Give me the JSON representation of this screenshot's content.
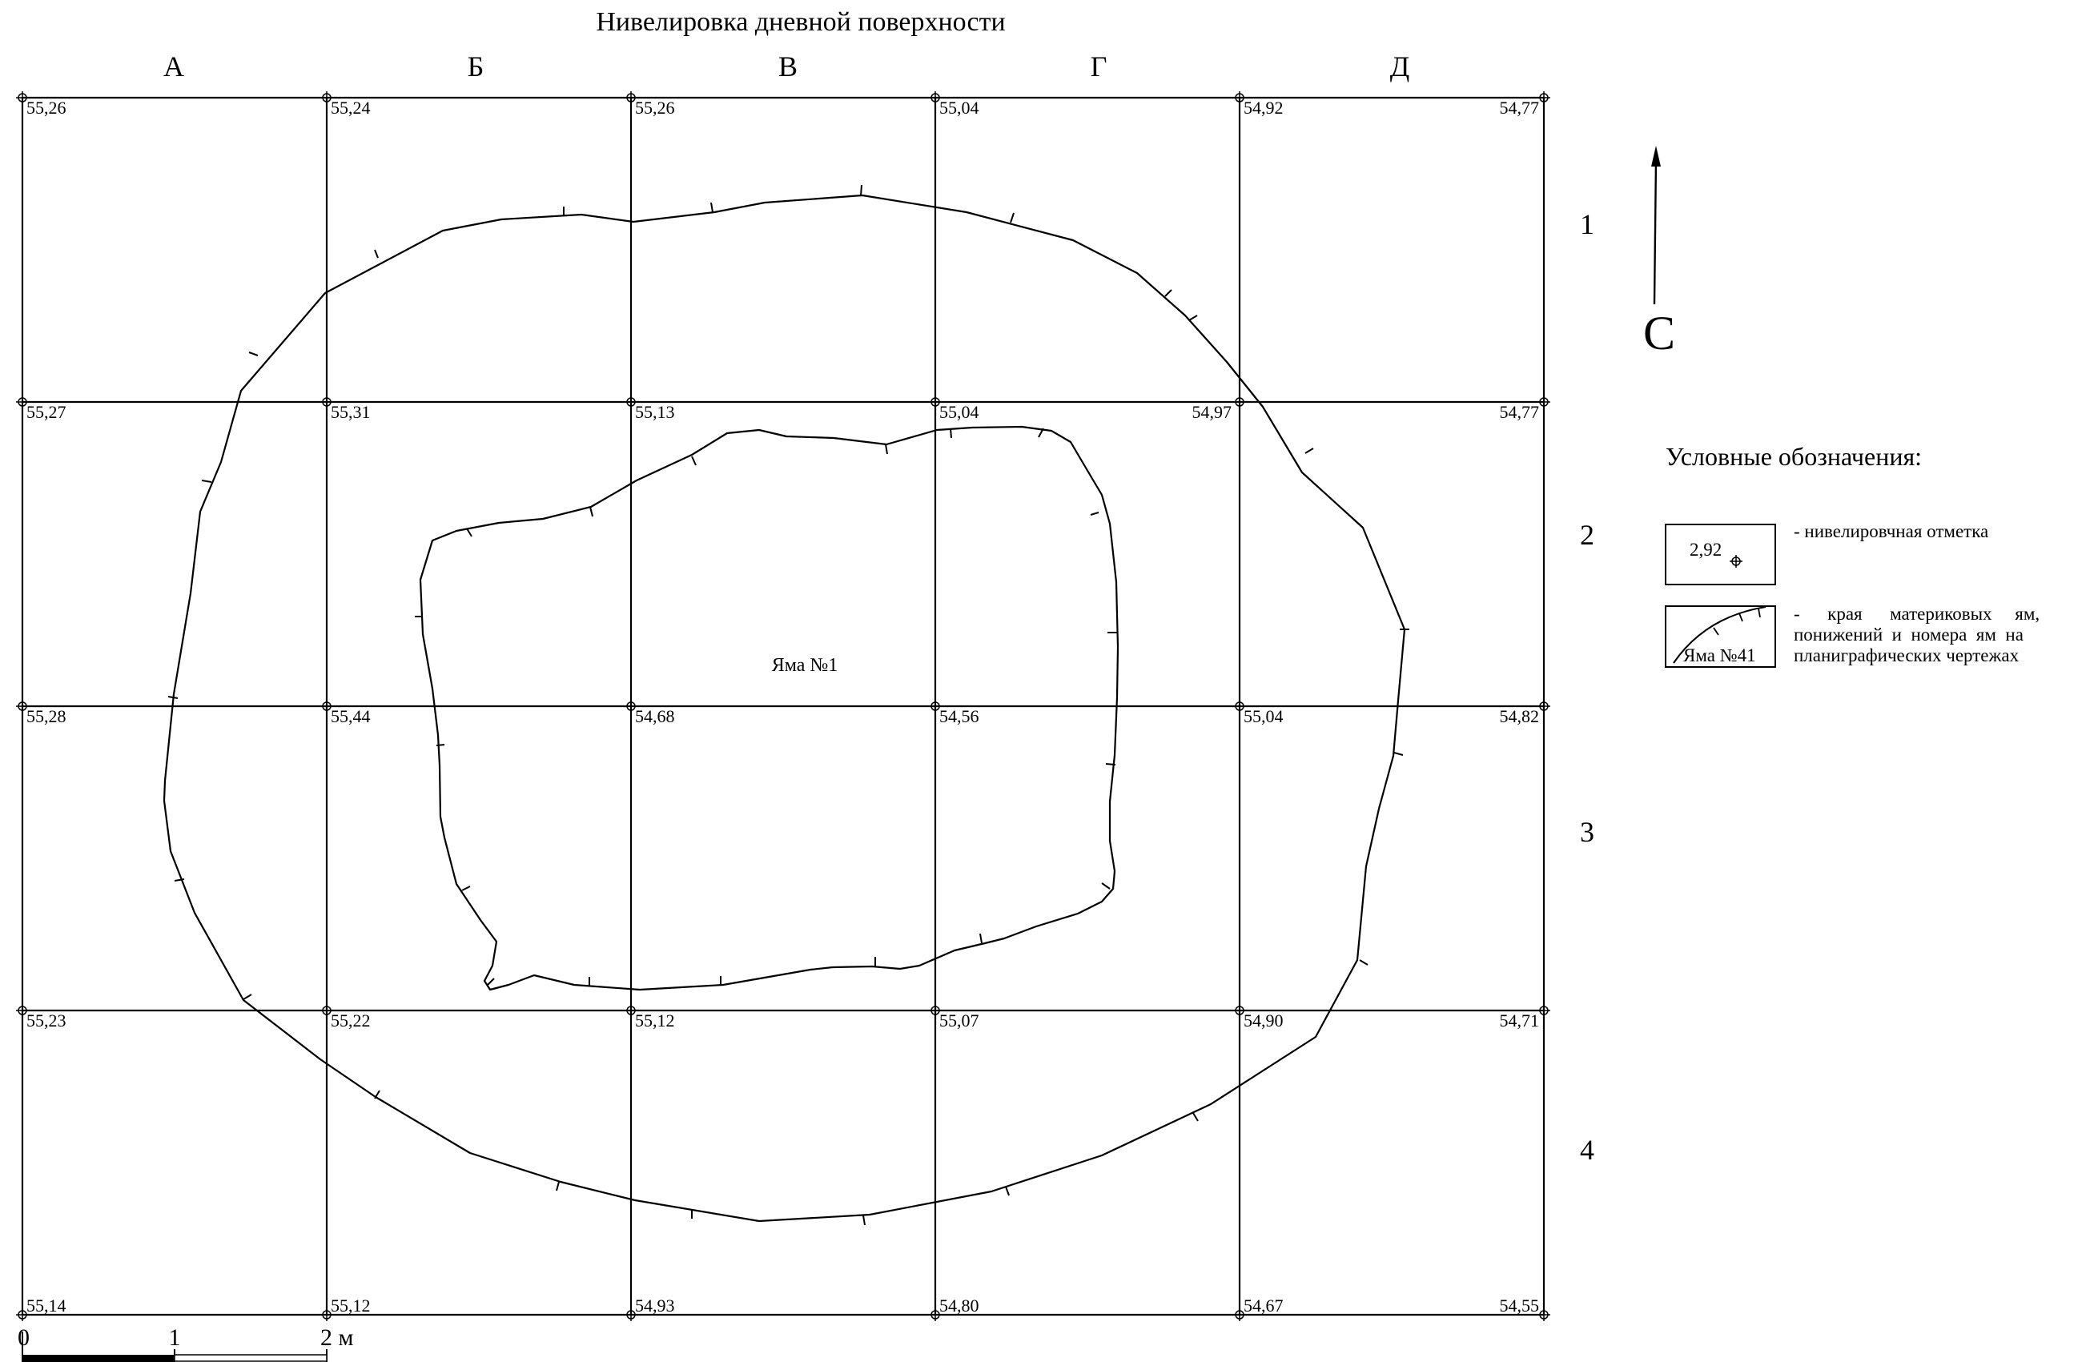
{
  "title": "Нивелировка дневной поверхности",
  "columns": [
    "А",
    "Б",
    "В",
    "Г",
    "Д"
  ],
  "rows": [
    "1",
    "2",
    "3",
    "4"
  ],
  "elevations": [
    [
      "55,26",
      "55,24",
      "55,26",
      "55,04",
      "54,92",
      "54,77"
    ],
    [
      "55,27",
      "55,31",
      "55,13",
      "55,04",
      "54,97",
      "54,77"
    ],
    [
      "55,28",
      "55,44",
      "54,68",
      "54,56",
      "55,04",
      "54,82"
    ],
    [
      "55,23",
      "55,22",
      "55,12",
      "55,07",
      "54,90",
      "54,71"
    ],
    [
      "55,14",
      "55,12",
      "54,93",
      "54,80",
      "54,67",
      "54,55"
    ]
  ],
  "pit_label": "Яма №1",
  "north_label": "С",
  "scale": {
    "labels": [
      "0",
      "1",
      "2 м"
    ]
  },
  "legend": {
    "title": "Условные обозначения:",
    "items": [
      {
        "sample": "2,92",
        "description": "- нивелировчная отметка",
        "icon": "benchmark-icon"
      },
      {
        "sample": "Яма №41",
        "description_lines": [
          "-      края      материковых     ям,",
          "понижений  и  номера  ям  на",
          "планиграфических чертежах"
        ],
        "icon": "pit-edge-icon"
      }
    ]
  }
}
